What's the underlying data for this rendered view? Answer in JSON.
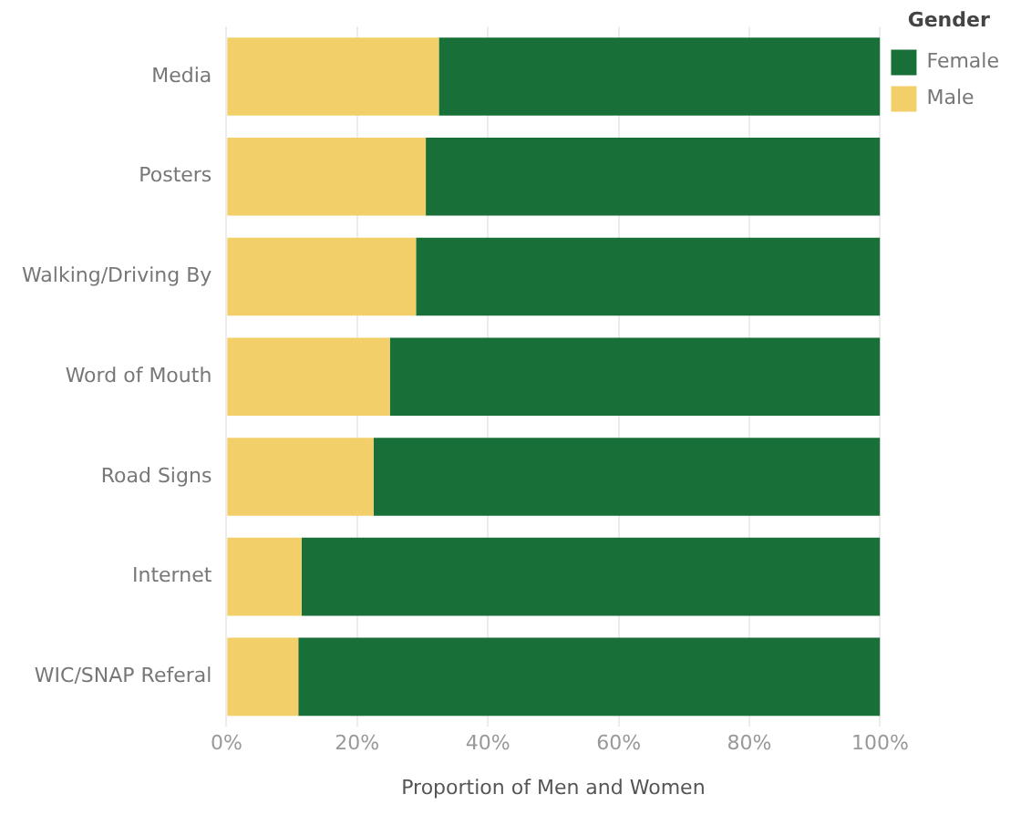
{
  "chart_data": {
    "type": "bar",
    "orientation": "horizontal",
    "stacked": true,
    "xlabel": "Proportion of Men and Women",
    "legend_title": "Gender",
    "legend": "top right",
    "grid": "x",
    "categories": [
      "Media",
      "Posters",
      "Walking/Driving By",
      "Word of Mouth",
      "Road Signs",
      "Internet",
      "WIC/SNAP Referal"
    ],
    "series": [
      {
        "name": "Male",
        "color": "#f2cf68",
        "values": [
          32.5,
          30.5,
          29,
          25,
          22.5,
          11.5,
          11
        ]
      },
      {
        "name": "Female",
        "color": "#186f38",
        "values": [
          67.5,
          69.5,
          71,
          75,
          77.5,
          88.5,
          89
        ]
      }
    ],
    "xlim": [
      0,
      100
    ],
    "xticks": [
      {
        "value": 0,
        "label": "0%"
      },
      {
        "value": 20,
        "label": "20%"
      },
      {
        "value": 40,
        "label": "40%"
      },
      {
        "value": 60,
        "label": "60%"
      },
      {
        "value": 80,
        "label": "80%"
      },
      {
        "value": 100,
        "label": "100%"
      }
    ]
  }
}
